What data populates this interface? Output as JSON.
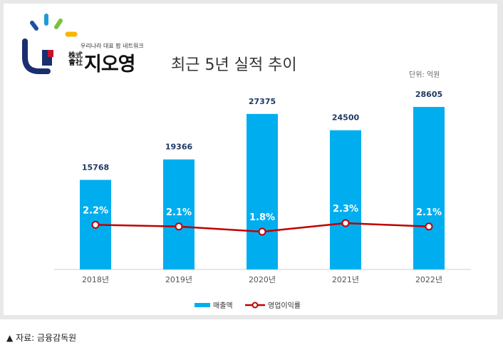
{
  "header": {
    "tagline": "우리나라 대표 팜 네트워크",
    "corp_mark": "株式會社",
    "brand_name": "지오영",
    "title": "최근 5년 실적 추이",
    "unit": "단위: 억원"
  },
  "footer": {
    "source_marker": "▲",
    "source": "자료: 금융감독원"
  },
  "colors": {
    "bar": "#00aeef",
    "line": "#c00000",
    "value_label": "#1f3864"
  },
  "chart_data": {
    "type": "bar",
    "categories": [
      "2018년",
      "2019년",
      "2020년",
      "2021년",
      "2022년"
    ],
    "series": [
      {
        "name": "매출액",
        "type": "bar",
        "values": [
          15768,
          19366,
          27375,
          24500,
          28605
        ]
      },
      {
        "name": "영업이익률",
        "type": "line",
        "values": [
          2.2,
          2.1,
          1.8,
          2.3,
          2.1
        ],
        "labels": [
          "2.2%",
          "2.1%",
          "1.8%",
          "2.3%",
          "2.1%"
        ]
      }
    ],
    "bar_ylim": [
      0,
      30000
    ],
    "line_ylim": [
      0,
      4
    ],
    "grid": false,
    "legend": "bottom-center"
  }
}
